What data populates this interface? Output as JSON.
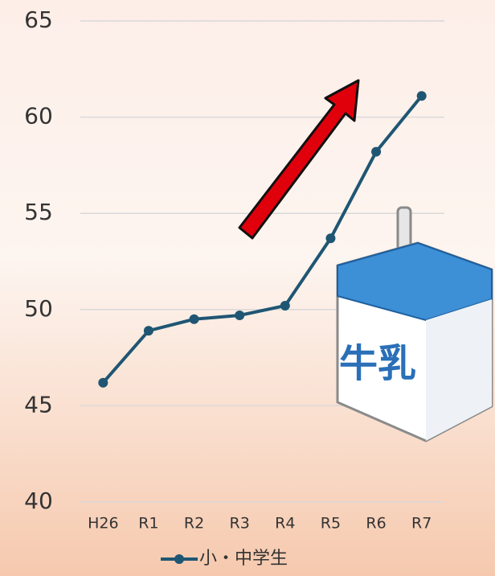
{
  "chart_data": {
    "type": "line",
    "categories": [
      "H26",
      "R1",
      "R2",
      "R3",
      "R4",
      "R5",
      "R6",
      "R7"
    ],
    "series": [
      {
        "name": "小・中学生",
        "color": "#1f5673",
        "values": [
          46.2,
          48.9,
          49.5,
          49.7,
          50.2,
          53.7,
          58.2,
          61.1
        ]
      }
    ],
    "ylim": [
      40,
      65
    ],
    "yticks": [
      40,
      45,
      50,
      55,
      60,
      65
    ],
    "grid": true,
    "legend": "bottom",
    "annotations": [
      "牛乳"
    ]
  }
}
